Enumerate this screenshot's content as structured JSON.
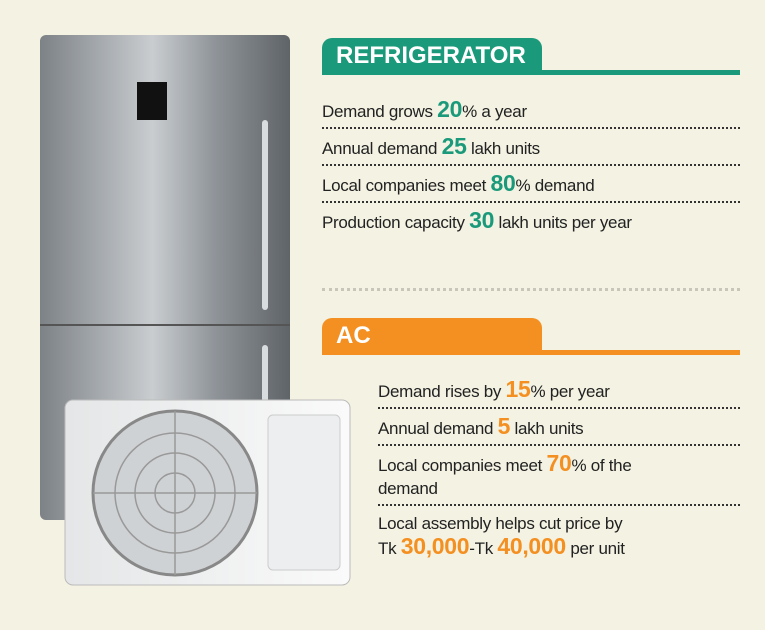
{
  "refrigerator": {
    "title": "REFRIGERATOR",
    "items": [
      [
        [
          {
            "text": "Demand grows "
          },
          {
            "text": "20",
            "highlight": true
          },
          {
            "text": "% a year"
          }
        ]
      ],
      [
        [
          {
            "text": "Annual demand "
          },
          {
            "text": "25",
            "highlight": true
          },
          {
            "text": " lakh units"
          }
        ]
      ],
      [
        [
          {
            "text": "Local companies meet "
          },
          {
            "text": "80",
            "highlight": true
          },
          {
            "text": "% demand"
          }
        ]
      ],
      [
        [
          {
            "text": "Production capacity "
          },
          {
            "text": "30",
            "highlight": true
          },
          {
            "text": " lakh units per year"
          }
        ]
      ]
    ]
  },
  "ac": {
    "title": "AC",
    "items": [
      [
        [
          {
            "text": "Demand rises by "
          },
          {
            "text": "15",
            "highlight": true
          },
          {
            "text": "% per year"
          }
        ]
      ],
      [
        [
          {
            "text": "Annual demand "
          },
          {
            "text": "5",
            "highlight": true
          },
          {
            "text": " lakh units"
          }
        ]
      ],
      [
        [
          {
            "text": "Local companies meet "
          },
          {
            "text": "70",
            "highlight": true
          },
          {
            "text": "% of the"
          }
        ],
        [
          {
            "text": "demand"
          }
        ]
      ],
      [
        [
          {
            "text": "Local assembly helps cut price by"
          }
        ],
        [
          {
            "text": "Tk "
          },
          {
            "text": "30,000",
            "highlight": true
          },
          {
            "text": "-Tk "
          },
          {
            "text": "40,000",
            "highlight": true
          },
          {
            "text": " per unit"
          }
        ]
      ]
    ]
  }
}
